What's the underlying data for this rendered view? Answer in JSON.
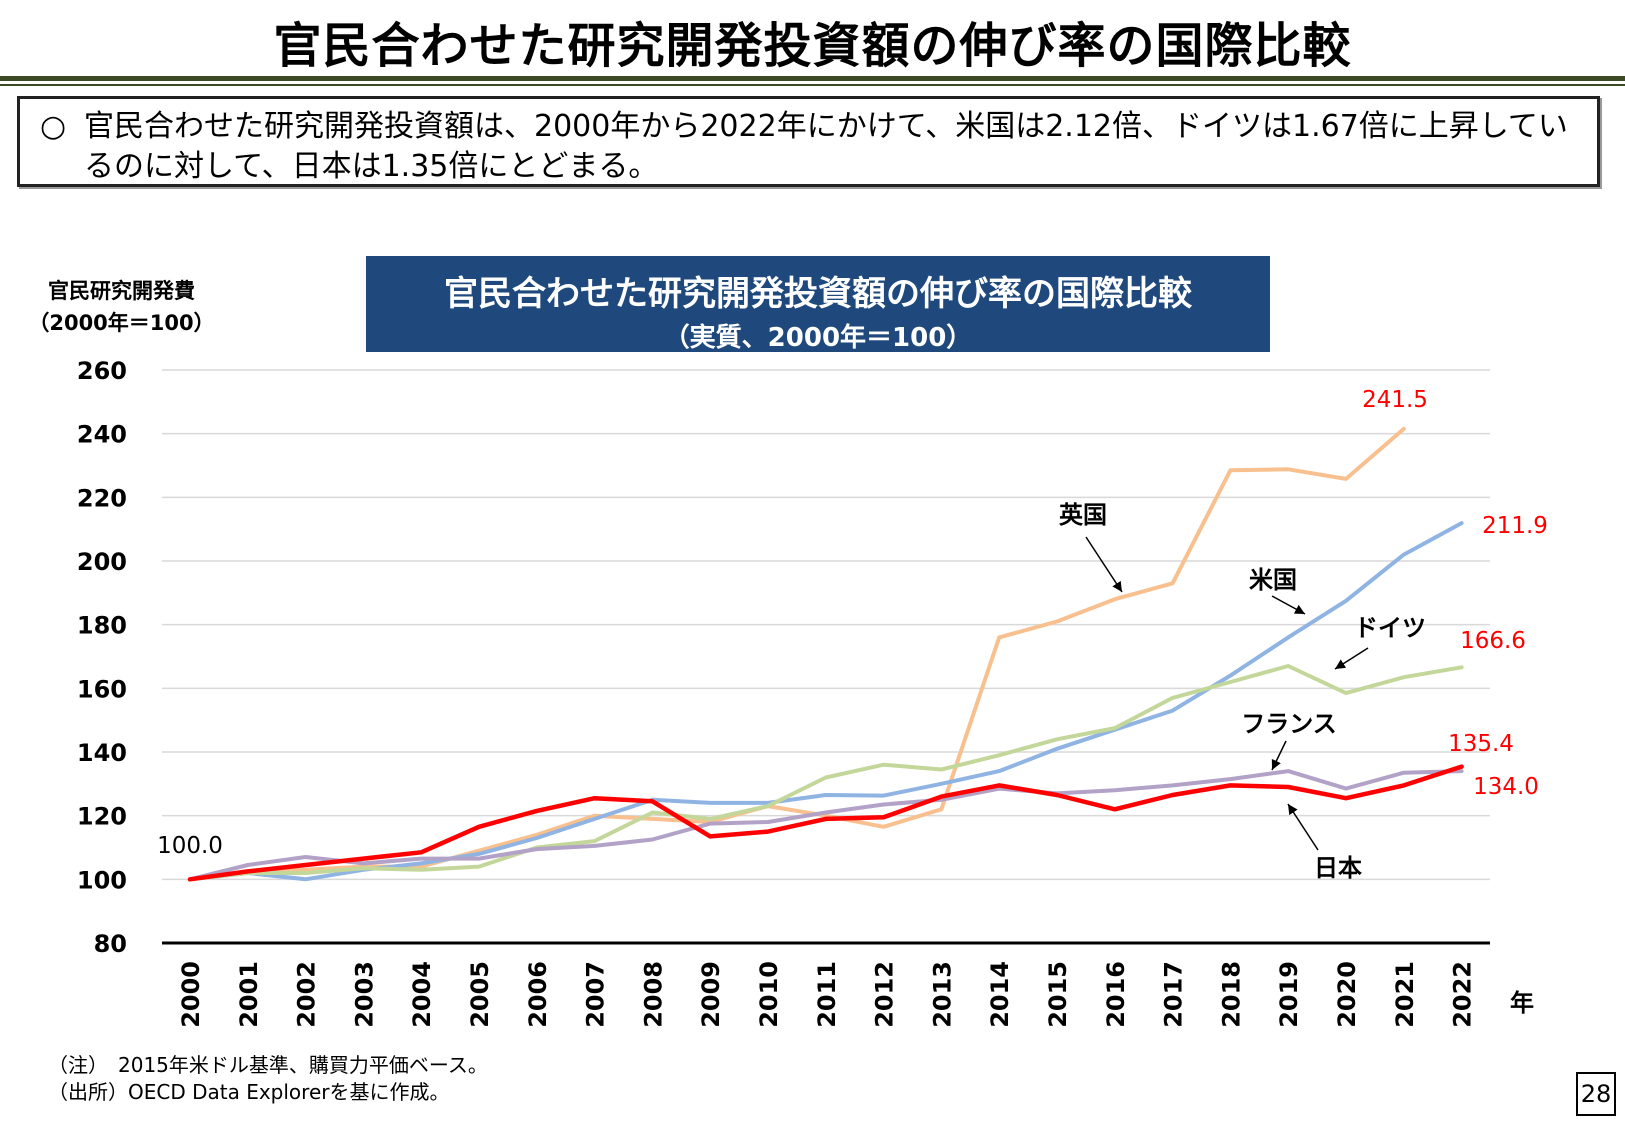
{
  "page": {
    "title": "官民合わせた研究開発投資額の伸び率の国際比較",
    "summary_bullet": "○",
    "summary": "官民合わせた研究開発投資額は、2000年から2022年にかけて、米国は2.12倍、ドイツは1.67倍に上昇しているのに対して、日本は1.35倍にとどまる。",
    "note": "（注）　2015年米ドル基準、購買力平価ベース。",
    "source": "（出所）OECD Data Explorerを基に作成。",
    "page_number": "28"
  },
  "chart_data": {
    "type": "line",
    "title": "官民合わせた研究開発投資額の伸び率の国際比較",
    "subtitle": "（実質、2000年＝100）",
    "ylabel_line1": "官民研究開発費",
    "ylabel_line2": "（2000年＝100）",
    "xlabel": "年",
    "ylim": [
      80,
      260
    ],
    "yticks": [
      80,
      100,
      120,
      140,
      160,
      180,
      200,
      220,
      240,
      260
    ],
    "grid": true,
    "x": [
      "2000",
      "2001",
      "2002",
      "2003",
      "2004",
      "2005",
      "2006",
      "2007",
      "2008",
      "2009",
      "2010",
      "2011",
      "2012",
      "2013",
      "2014",
      "2015",
      "2016",
      "2017",
      "2018",
      "2019",
      "2020",
      "2021",
      "2022"
    ],
    "series": [
      {
        "name": "英国",
        "color": "#f8c08f",
        "values": [
          100,
          102,
          103,
          104,
          104,
          109,
          114,
          120,
          119,
          118,
          123,
          120,
          116.5,
          122,
          176,
          181,
          188,
          193,
          228.5,
          228.8,
          225.8,
          241.5,
          null
        ]
      },
      {
        "name": "米国",
        "color": "#8fb4e3",
        "values": [
          100,
          102,
          100,
          103,
          105,
          108,
          113,
          119,
          125,
          124,
          124,
          126.5,
          126.3,
          130,
          134,
          141,
          147,
          153,
          164,
          176,
          187.5,
          202,
          211.9
        ]
      },
      {
        "name": "ドイツ",
        "color": "#c4d79b",
        "values": [
          100,
          102,
          102,
          103.5,
          103,
          104,
          110,
          112,
          121,
          119,
          123,
          132,
          136,
          134.5,
          139,
          144,
          147.5,
          157,
          162,
          167,
          158.5,
          163.5,
          166.6
        ]
      },
      {
        "name": "フランス",
        "color": "#b3a2c7",
        "values": [
          100,
          104.5,
          107,
          105,
          106.5,
          106.5,
          109.5,
          110.5,
          112.5,
          117.5,
          118,
          121,
          123.5,
          125,
          128.5,
          127,
          128,
          129.5,
          131.5,
          134,
          128.5,
          133.5,
          134.0
        ]
      },
      {
        "name": "日本",
        "color": "#ff0000",
        "values": [
          100,
          102.5,
          104.5,
          106.5,
          108.5,
          116.5,
          121.5,
          125.5,
          124.5,
          113.5,
          115,
          119,
          119.5,
          126,
          129.5,
          126.5,
          122,
          126.5,
          129.5,
          129,
          125.5,
          129.5,
          135.4
        ]
      }
    ],
    "value_labels": {
      "start": "100.0",
      "uk_end": "241.5",
      "us_end": "211.9",
      "de_end": "166.6",
      "jp_end": "135.4",
      "fr_end": "134.0"
    }
  }
}
